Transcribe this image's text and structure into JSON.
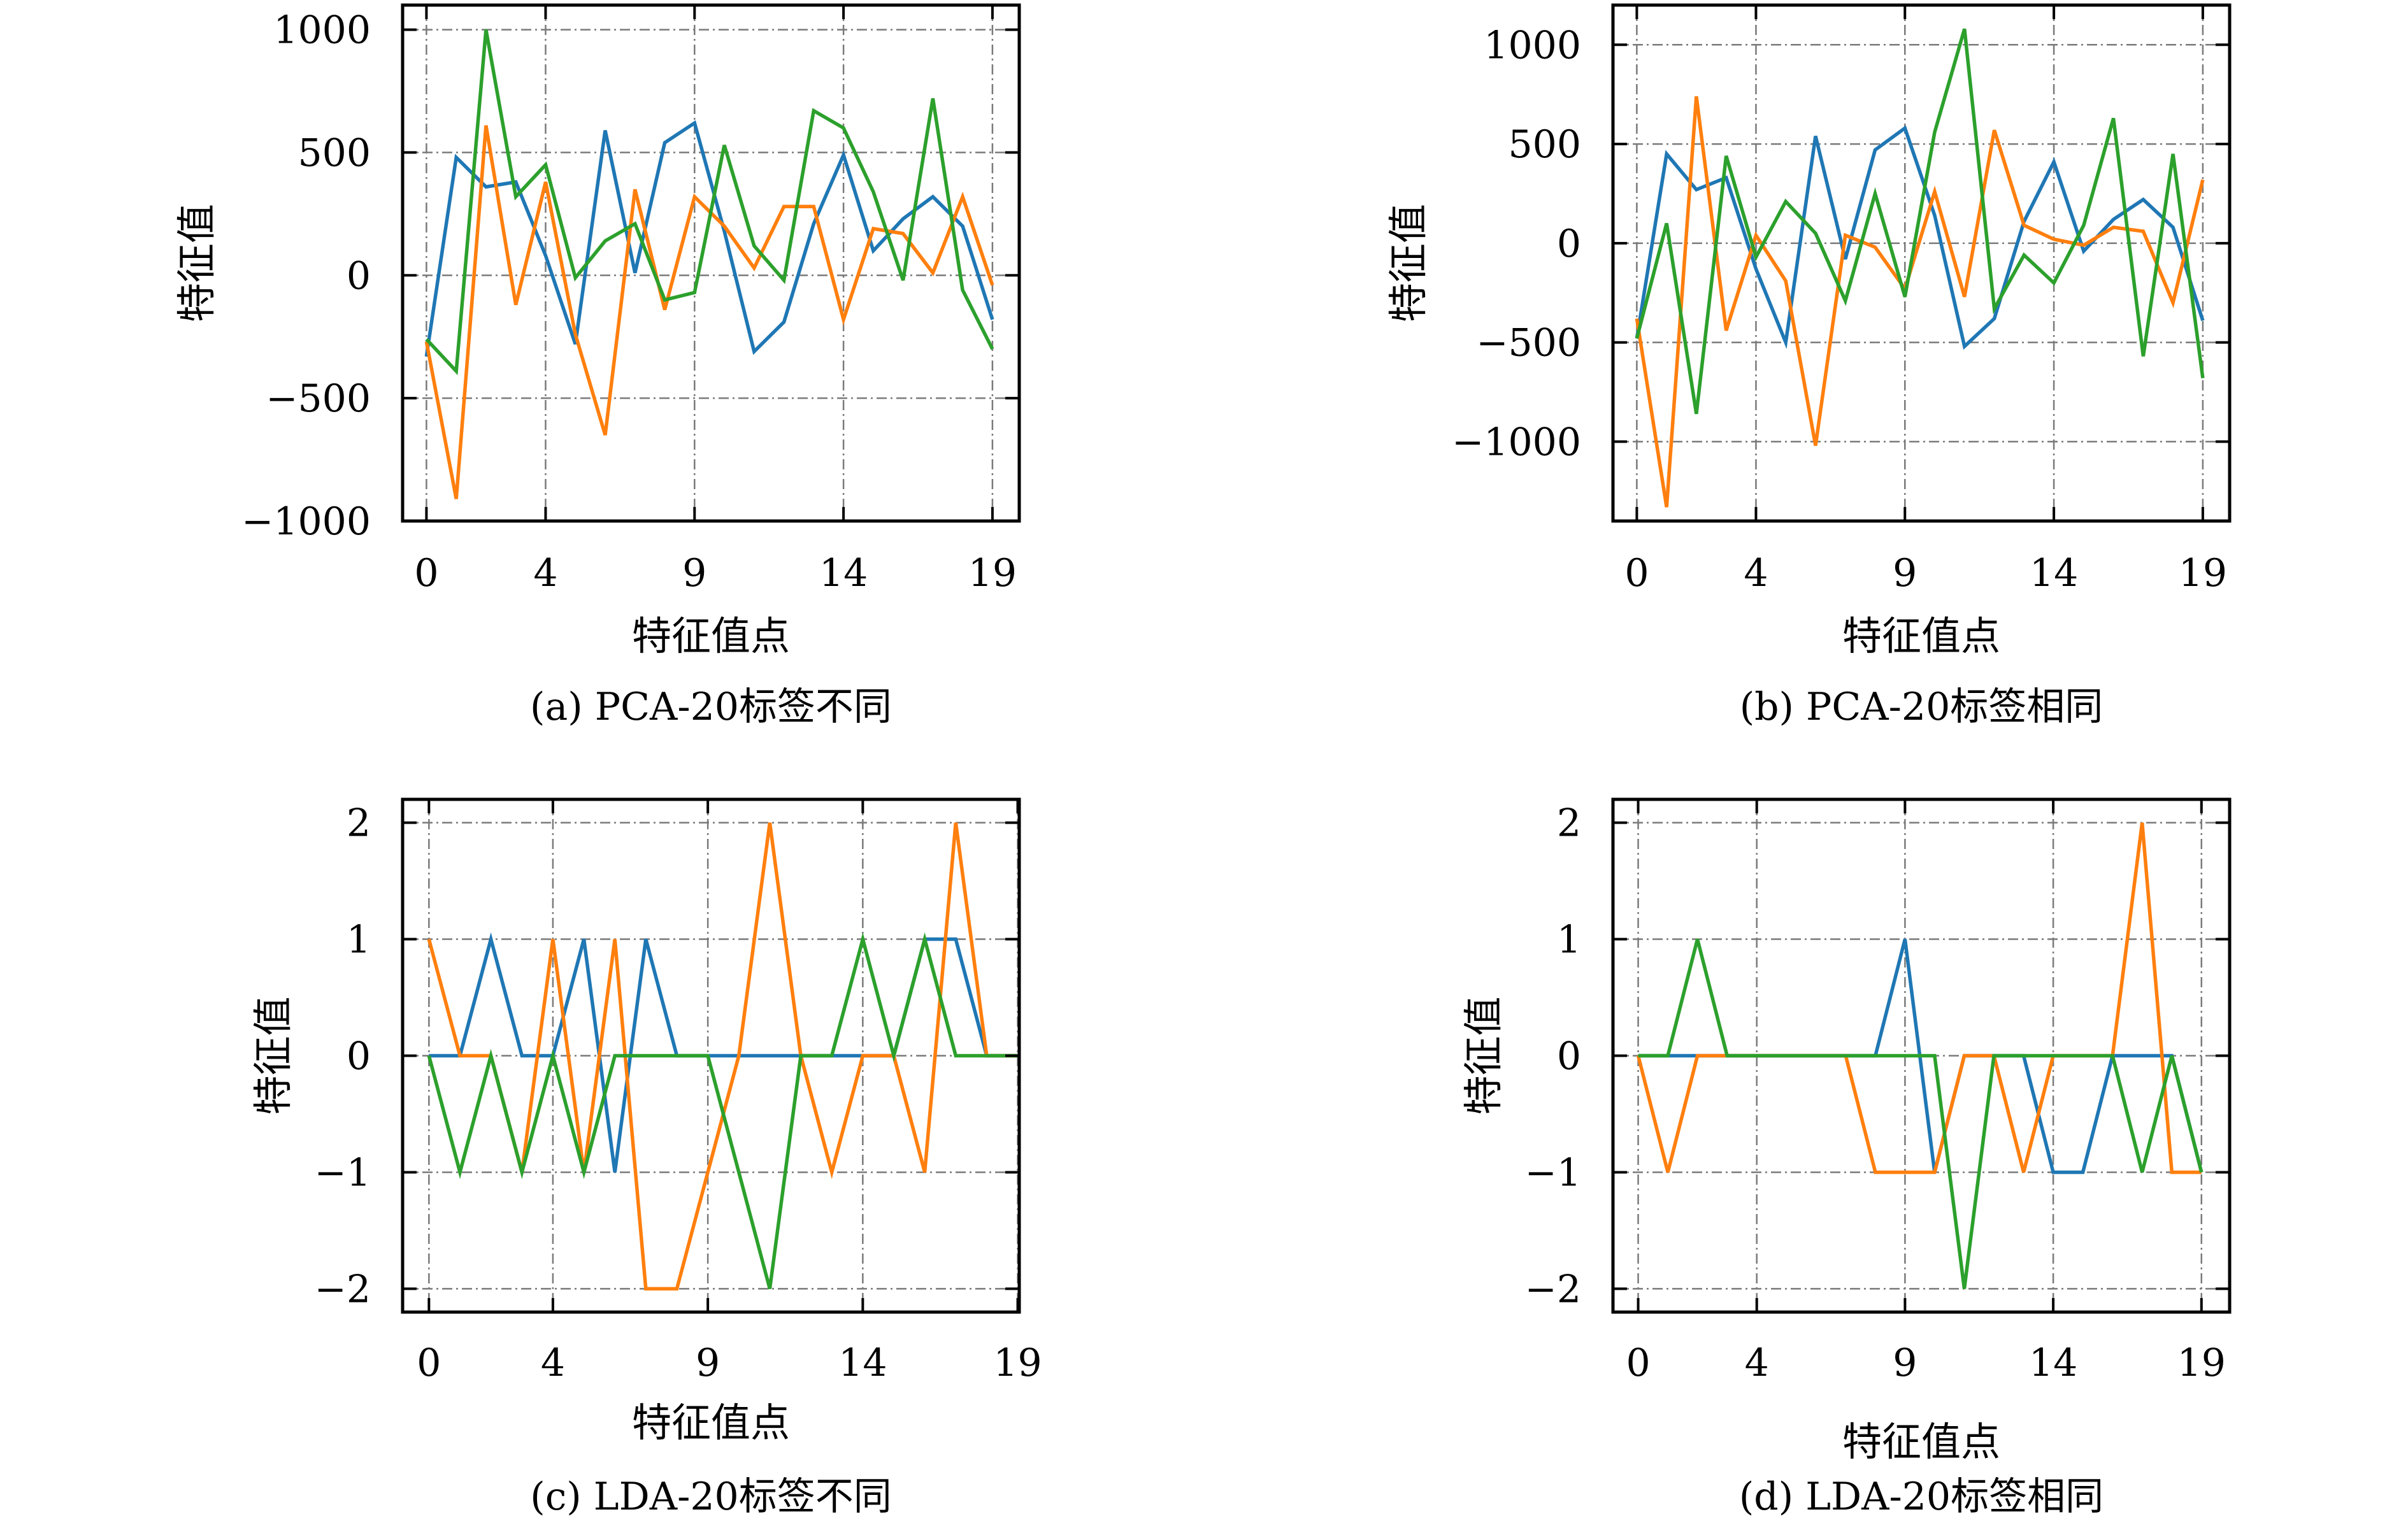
{
  "chart_data": [
    {
      "type": "line",
      "caption": "(a) PCA-20标签不同",
      "xlabel": "特征值点",
      "ylabel": "特征值",
      "xticks": [
        0,
        4,
        9,
        14,
        19
      ],
      "yticks": [
        -1000,
        -500,
        0,
        500,
        1000
      ],
      "ytick_labels": [
        "−1000",
        "−500",
        "0",
        "500",
        "1000"
      ],
      "xlim": [
        -0.8,
        19.9
      ],
      "ylim": [
        -1000,
        1100
      ],
      "grid": true,
      "x": [
        0,
        1,
        2,
        3,
        4,
        5,
        6,
        7,
        8,
        9,
        10,
        11,
        12,
        13,
        14,
        15,
        16,
        17,
        18,
        19
      ],
      "series": [
        {
          "color": "#1f77b4",
          "values": [
            -330,
            480,
            360,
            380,
            80,
            -280,
            590,
            10,
            540,
            620,
            180,
            -310,
            -190,
            210,
            490,
            100,
            230,
            320,
            200,
            -180
          ]
        },
        {
          "color": "#ff7f0e",
          "values": [
            -270,
            -910,
            610,
            -120,
            380,
            -240,
            -650,
            350,
            -140,
            320,
            200,
            30,
            280,
            280,
            -180,
            190,
            170,
            10,
            320,
            -40
          ]
        },
        {
          "color": "#2ca02c",
          "values": [
            -260,
            -390,
            1000,
            320,
            450,
            -10,
            140,
            210,
            -100,
            -70,
            530,
            120,
            -20,
            670,
            600,
            340,
            -20,
            720,
            -60,
            -300
          ]
        }
      ]
    },
    {
      "type": "line",
      "caption": "(b) PCA-20标签相同",
      "xlabel": "特征值点",
      "ylabel": "特征值",
      "xticks": [
        0,
        4,
        9,
        14,
        19
      ],
      "yticks": [
        -1000,
        -500,
        0,
        500,
        1000
      ],
      "ytick_labels": [
        "−1000",
        "−500",
        "0",
        "500",
        "1000"
      ],
      "xlim": [
        -0.8,
        19.9
      ],
      "ylim": [
        -1400,
        1200
      ],
      "grid": true,
      "x": [
        0,
        1,
        2,
        3,
        4,
        5,
        6,
        7,
        8,
        9,
        10,
        11,
        12,
        13,
        14,
        15,
        16,
        17,
        18,
        19
      ],
      "series": [
        {
          "color": "#1f77b4",
          "values": [
            -480,
            450,
            270,
            330,
            -130,
            -500,
            540,
            -80,
            470,
            580,
            140,
            -520,
            -380,
            110,
            410,
            -40,
            120,
            220,
            80,
            -390
          ]
        },
        {
          "color": "#ff7f0e",
          "values": [
            -380,
            -1330,
            740,
            -440,
            40,
            -190,
            -1020,
            40,
            -20,
            -230,
            260,
            -270,
            570,
            90,
            20,
            -10,
            80,
            60,
            -300,
            320
          ]
        },
        {
          "color": "#2ca02c",
          "values": [
            -480,
            100,
            -860,
            440,
            -70,
            210,
            50,
            -290,
            250,
            -270,
            560,
            1080,
            -330,
            -60,
            -200,
            90,
            630,
            -570,
            450,
            -680
          ]
        }
      ]
    },
    {
      "type": "line",
      "caption": "(c) LDA-20标签不同",
      "xlabel": "特征值点",
      "ylabel": "特征值",
      "xticks": [
        0,
        4,
        9,
        14,
        19
      ],
      "yticks": [
        -2,
        -1,
        0,
        1,
        2
      ],
      "ytick_labels": [
        "−2",
        "−1",
        "0",
        "1",
        "2"
      ],
      "xlim": [
        -0.85,
        19.05
      ],
      "ylim": [
        -2.2,
        2.2
      ],
      "grid": true,
      "x": [
        0,
        1,
        2,
        3,
        4,
        5,
        6,
        7,
        8,
        9,
        10,
        11,
        12,
        13,
        14,
        15,
        16,
        17,
        18,
        19
      ],
      "series": [
        {
          "color": "#1f77b4",
          "values": [
            0,
            0,
            1,
            0,
            0,
            1,
            -1,
            1,
            0,
            0,
            0,
            0,
            0,
            0,
            0,
            0,
            1,
            1,
            0,
            0
          ]
        },
        {
          "color": "#ff7f0e",
          "values": [
            1,
            0,
            0,
            -1,
            1,
            -1,
            1,
            -2,
            -2,
            -1,
            0,
            2,
            0,
            -1,
            0,
            0,
            -1,
            2,
            0,
            0
          ]
        },
        {
          "color": "#2ca02c",
          "values": [
            0,
            -1,
            0,
            -1,
            0,
            -1,
            0,
            0,
            0,
            0,
            -1,
            -2,
            0,
            0,
            1,
            0,
            1,
            0,
            0,
            0
          ]
        }
      ]
    },
    {
      "type": "line",
      "caption": "(d) LDA-20标签相同",
      "xlabel": "特征值点",
      "ylabel": "特征值",
      "xticks": [
        0,
        4,
        9,
        14,
        19
      ],
      "yticks": [
        -2,
        -1,
        0,
        1,
        2
      ],
      "ytick_labels": [
        "−2",
        "−1",
        "0",
        "1",
        "2"
      ],
      "xlim": [
        -0.85,
        19.95
      ],
      "ylim": [
        -2.2,
        2.2
      ],
      "grid": true,
      "x": [
        0,
        1,
        2,
        3,
        4,
        5,
        6,
        7,
        8,
        9,
        10,
        11,
        12,
        13,
        14,
        15,
        16,
        17,
        18,
        19
      ],
      "series": [
        {
          "color": "#1f77b4",
          "values": [
            0,
            0,
            0,
            0,
            0,
            0,
            0,
            0,
            0,
            1,
            -1,
            0,
            0,
            0,
            -1,
            -1,
            0,
            0,
            0,
            -1
          ]
        },
        {
          "color": "#ff7f0e",
          "values": [
            0,
            -1,
            0,
            0,
            0,
            0,
            0,
            0,
            -1,
            -1,
            -1,
            0,
            0,
            -1,
            0,
            0,
            0,
            2,
            -1,
            -1
          ]
        },
        {
          "color": "#2ca02c",
          "values": [
            0,
            0,
            1,
            0,
            0,
            0,
            0,
            0,
            0,
            0,
            0,
            -2,
            0,
            0,
            0,
            0,
            0,
            -1,
            0,
            -1
          ]
        }
      ]
    }
  ]
}
